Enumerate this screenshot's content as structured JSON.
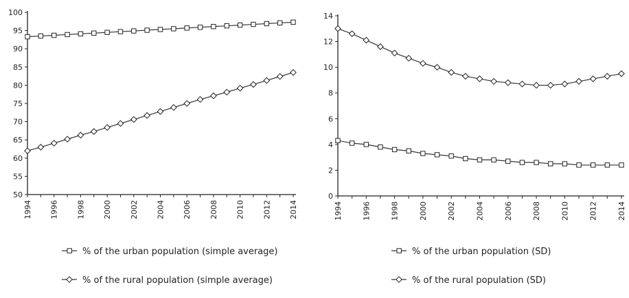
{
  "chart_data": [
    {
      "type": "line",
      "title": "",
      "xlabel": "",
      "ylabel": "",
      "ylim": [
        50,
        100
      ],
      "yticks": [
        50,
        55,
        60,
        65,
        70,
        75,
        80,
        85,
        90,
        95,
        100
      ],
      "x": [
        1994,
        1995,
        1996,
        1997,
        1998,
        1999,
        2000,
        2001,
        2002,
        2003,
        2004,
        2005,
        2006,
        2007,
        2008,
        2009,
        2010,
        2011,
        2012,
        2013,
        2014
      ],
      "xtick_labels": [
        "1994",
        "1996",
        "1998",
        "2000",
        "2002",
        "2004",
        "2006",
        "2008",
        "2010",
        "2012",
        "2014"
      ],
      "grid": false,
      "legend_position": "bottom",
      "series": [
        {
          "name": "% of the urban population (simple average)",
          "marker": "square",
          "values": [
            93.3,
            93.5,
            93.7,
            93.9,
            94.1,
            94.3,
            94.5,
            94.7,
            94.9,
            95.1,
            95.3,
            95.5,
            95.7,
            95.9,
            96.1,
            96.3,
            96.5,
            96.7,
            96.9,
            97.1,
            97.3
          ]
        },
        {
          "name": "% of the rural population (simple average)",
          "marker": "diamond",
          "values": [
            62.0,
            63.0,
            64.1,
            65.2,
            66.3,
            67.3,
            68.4,
            69.5,
            70.6,
            71.7,
            72.8,
            73.9,
            75.0,
            76.1,
            77.1,
            78.1,
            79.2,
            80.2,
            81.3,
            82.4,
            83.5
          ]
        }
      ]
    },
    {
      "type": "line",
      "title": "",
      "xlabel": "",
      "ylabel": "",
      "ylim": [
        0,
        14
      ],
      "yticks": [
        0,
        2,
        4,
        6,
        8,
        10,
        12,
        14
      ],
      "x": [
        1994,
        1995,
        1996,
        1997,
        1998,
        1999,
        2000,
        2001,
        2002,
        2003,
        2004,
        2005,
        2006,
        2007,
        2008,
        2009,
        2010,
        2011,
        2012,
        2013,
        2014
      ],
      "xtick_labels": [
        "1994",
        "1996",
        "1998",
        "2000",
        "2002",
        "2004",
        "2006",
        "2008",
        "2010",
        "2012",
        "2014"
      ],
      "grid": false,
      "legend_position": "bottom",
      "series": [
        {
          "name": "% of the urban population (SD)",
          "marker": "square",
          "values": [
            4.3,
            4.1,
            4.0,
            3.8,
            3.6,
            3.5,
            3.3,
            3.2,
            3.1,
            2.9,
            2.8,
            2.8,
            2.7,
            2.6,
            2.6,
            2.5,
            2.5,
            2.4,
            2.4,
            2.4,
            2.4
          ]
        },
        {
          "name": "% of the rural population (SD)",
          "marker": "diamond",
          "values": [
            13.0,
            12.6,
            12.1,
            11.6,
            11.1,
            10.7,
            10.3,
            10.0,
            9.6,
            9.3,
            9.1,
            8.9,
            8.8,
            8.7,
            8.6,
            8.6,
            8.7,
            8.9,
            9.1,
            9.3,
            9.5
          ]
        }
      ]
    }
  ]
}
